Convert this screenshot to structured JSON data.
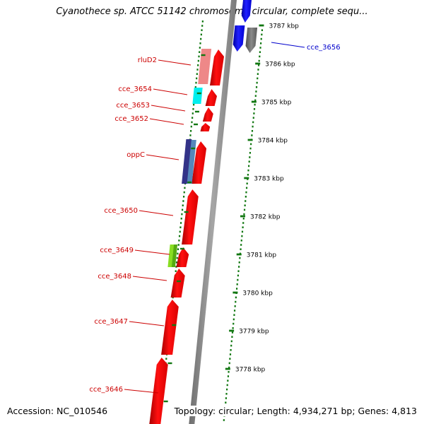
{
  "title": "Cyanothece sp. ATCC 51142 chromosome circular, complete sequ...",
  "footer": {
    "accession": "Accession: NC_010546",
    "summary": "Topology: circular; Length: 4,934,271 bp; Genes: 4,813"
  },
  "chart_data": {
    "type": "genome-map",
    "ruler_ticks": [
      "3787 kbp",
      "3786 kbp",
      "3785 kbp",
      "3784 kbp",
      "3783 kbp",
      "3782 kbp",
      "3781 kbp",
      "3780 kbp",
      "3779 kbp",
      "3778 kbp"
    ],
    "labeled_genes": [
      {
        "name": "cce_3656",
        "strand": "outer",
        "color": "#0000cc"
      },
      {
        "name": "rluD2",
        "strand": "inner",
        "color": "#cc0000"
      },
      {
        "name": "cce_3654",
        "strand": "inner",
        "color": "#cc0000"
      },
      {
        "name": "cce_3653",
        "strand": "inner",
        "color": "#cc0000"
      },
      {
        "name": "cce_3652",
        "strand": "inner",
        "color": "#cc0000"
      },
      {
        "name": "oppC",
        "strand": "inner",
        "color": "#cc0000"
      },
      {
        "name": "cce_3650",
        "strand": "inner",
        "color": "#cc0000"
      },
      {
        "name": "cce_3649",
        "strand": "inner",
        "color": "#cc0000"
      },
      {
        "name": "cce_3648",
        "strand": "inner",
        "color": "#cc0000"
      },
      {
        "name": "cce_3647",
        "strand": "inner",
        "color": "#cc0000"
      },
      {
        "name": "cce_3646",
        "strand": "inner",
        "color": "#cc0000"
      }
    ],
    "colors": {
      "backbone": "#8c8c8c",
      "gene_red": "#ee0000",
      "gene_blue": "#0000ee",
      "gene_grey": "#707070",
      "gene_pink": "#ee8888",
      "gene_cyan": "#00eeee",
      "gene_navy": "#333388",
      "gene_steel": "#5588bb",
      "gene_lime": "#88dd22",
      "track_dots": "#117711",
      "leader_red": "#cc0000",
      "leader_blue": "#0000cc"
    }
  }
}
